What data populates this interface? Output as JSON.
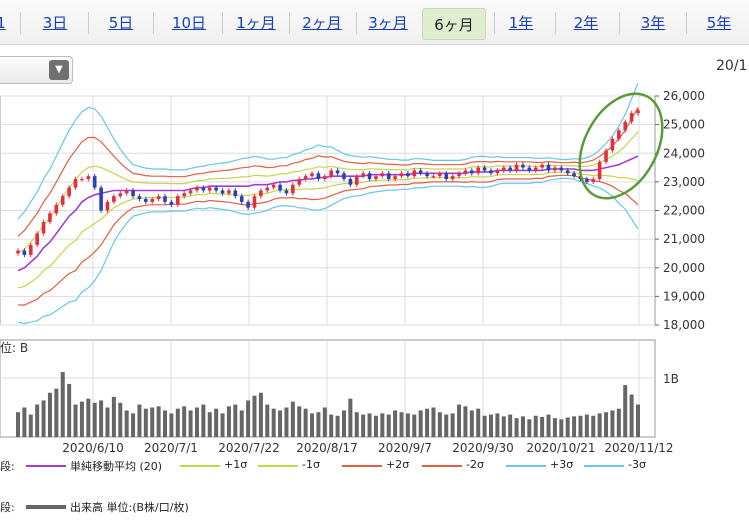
{
  "tabs": [
    {
      "label": "1"
    },
    {
      "label": "3日"
    },
    {
      "label": "5日"
    },
    {
      "label": "10日"
    },
    {
      "label": "1ヶ月"
    },
    {
      "label": "2ヶ月"
    },
    {
      "label": "3ヶ月"
    },
    {
      "label": "6ヶ月",
      "active": true
    },
    {
      "label": "1年"
    },
    {
      "label": "2年"
    },
    {
      "label": "3年"
    },
    {
      "label": "5年"
    }
  ],
  "dropdown": {
    "arrow_icon": "triangle-down-icon"
  },
  "chart_header_date": "20/1",
  "colors": {
    "sma": "#a040d0",
    "p1": "#c8d44a",
    "m1": "#c8d44a",
    "p2": "#e06040",
    "m2": "#e06040",
    "p3": "#66c8e6",
    "m3": "#66c8e6",
    "up": "#e03040",
    "down": "#2a3fb8",
    "volume": "#666666",
    "annotation": "#5a9a3a"
  },
  "chart_data": {
    "type": "candlestick",
    "y_ticks": [
      "26,000",
      "25,000",
      "24,000",
      "23,000",
      "22,000",
      "21,000",
      "20,000",
      "19,000",
      "18,000"
    ],
    "ylim": [
      18000,
      26000
    ],
    "x_labels": [
      "2020/6/10",
      "2020/7/1",
      "2020/7/22",
      "2020/8/17",
      "2020/9/7",
      "2020/9/30",
      "2020/10/21",
      "2020/11/12"
    ],
    "volume_label": "位: B",
    "volume_tick": "1B",
    "close": [
      20600,
      20450,
      20800,
      21200,
      21600,
      21900,
      22200,
      22500,
      22800,
      23100,
      23100,
      23200,
      22800,
      22000,
      22300,
      22500,
      22600,
      22700,
      22500,
      22400,
      22300,
      22400,
      22500,
      22300,
      22200,
      22500,
      22600,
      22700,
      22800,
      22700,
      22800,
      22700,
      22600,
      22700,
      22500,
      22300,
      22100,
      22500,
      22700,
      22800,
      22900,
      22700,
      22600,
      22900,
      23100,
      23200,
      23300,
      23100,
      23200,
      23400,
      23300,
      23100,
      22900,
      23200,
      23300,
      23100,
      23200,
      23300,
      23100,
      23200,
      23300,
      23200,
      23400,
      23300,
      23200,
      23200,
      23300,
      23100,
      23200,
      23300,
      23400,
      23300,
      23500,
      23400,
      23300,
      23400,
      23500,
      23400,
      23600,
      23500,
      23400,
      23500,
      23600,
      23400,
      23500,
      23400,
      23300,
      23200,
      23100,
      23000,
      23100,
      23700,
      24100,
      24500,
      24800,
      25100,
      25400,
      25500
    ],
    "volume": [
      0.42,
      0.5,
      0.38,
      0.55,
      0.62,
      0.75,
      0.82,
      1.1,
      0.9,
      0.55,
      0.6,
      0.65,
      0.58,
      0.62,
      0.5,
      0.68,
      0.58,
      0.45,
      0.4,
      0.55,
      0.48,
      0.5,
      0.52,
      0.45,
      0.4,
      0.48,
      0.52,
      0.45,
      0.5,
      0.55,
      0.42,
      0.48,
      0.4,
      0.52,
      0.55,
      0.45,
      0.62,
      0.7,
      0.75,
      0.55,
      0.48,
      0.45,
      0.5,
      0.6,
      0.52,
      0.48,
      0.4,
      0.42,
      0.5,
      0.38,
      0.36,
      0.45,
      0.65,
      0.42,
      0.38,
      0.4,
      0.36,
      0.4,
      0.38,
      0.45,
      0.42,
      0.4,
      0.38,
      0.45,
      0.48,
      0.5,
      0.42,
      0.38,
      0.4,
      0.55,
      0.52,
      0.45,
      0.48,
      0.36,
      0.38,
      0.4,
      0.35,
      0.38,
      0.32,
      0.35,
      0.3,
      0.36,
      0.34,
      0.38,
      0.32,
      0.3,
      0.33,
      0.35,
      0.36,
      0.38,
      0.36,
      0.4,
      0.42,
      0.45,
      0.48,
      0.88,
      0.72,
      0.55
    ],
    "bands": {
      "sma": [
        19900,
        20000,
        20200,
        20400,
        20700,
        20900,
        21200,
        21500,
        21800,
        22000,
        22300,
        22450,
        22550,
        22600,
        22650,
        22700,
        22700,
        22700,
        22700,
        22700,
        22700,
        22700,
        22700,
        22700,
        22700,
        22700,
        22700,
        22750,
        22800,
        22800,
        22850,
        22850,
        22850,
        22850,
        22850,
        22850,
        22850,
        22900,
        22900,
        22900,
        22950,
        23000,
        23000,
        23050,
        23050,
        23100,
        23100,
        23150,
        23150,
        23200,
        23200,
        23200,
        23200,
        23200,
        23200,
        23250,
        23250,
        23250,
        23250,
        23250,
        23250,
        23250,
        23300,
        23300,
        23300,
        23300,
        23300,
        23300,
        23300,
        23300,
        23300,
        23350,
        23350,
        23350,
        23350,
        23400,
        23400,
        23400,
        23400,
        23400,
        23400,
        23400,
        23400,
        23450,
        23450,
        23450,
        23450,
        23450,
        23400,
        23400,
        23400,
        23450,
        23500,
        23550,
        23600,
        23700,
        23800,
        23900
      ],
      "sd": [
        600,
        650,
        700,
        750,
        800,
        850,
        900,
        950,
        1000,
        1050,
        1050,
        1050,
        1000,
        900,
        750,
        600,
        480,
        380,
        300,
        280,
        260,
        250,
        250,
        250,
        240,
        240,
        240,
        240,
        240,
        250,
        250,
        260,
        270,
        280,
        300,
        320,
        330,
        330,
        320,
        300,
        280,
        280,
        280,
        300,
        320,
        340,
        360,
        380,
        360,
        340,
        300,
        260,
        240,
        230,
        220,
        210,
        200,
        190,
        180,
        180,
        170,
        170,
        170,
        170,
        160,
        150,
        150,
        150,
        150,
        150,
        160,
        170,
        180,
        180,
        170,
        160,
        150,
        150,
        150,
        150,
        150,
        140,
        140,
        130,
        120,
        110,
        110,
        120,
        130,
        150,
        180,
        220,
        280,
        350,
        450,
        550,
        700,
        850
      ]
    },
    "series": [
      {
        "name": "単純移動平均 (20)"
      },
      {
        "name": "+1σ"
      },
      {
        "name": "-1σ"
      },
      {
        "name": "+2σ"
      },
      {
        "name": "-2σ"
      },
      {
        "name": "+3σ"
      },
      {
        "name": "-3σ"
      }
    ]
  },
  "legend": {
    "row1_prefix": "段:",
    "row2_prefix": "段:",
    "volume_item": "出来高 単位:(B株/口/枚)"
  }
}
